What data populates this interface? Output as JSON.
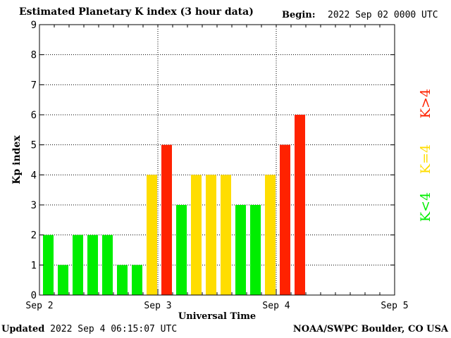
{
  "header": {
    "title": "Estimated Planetary K index (3 hour data)",
    "begin_label": "Begin:",
    "begin_value": "2022 Sep 02 0000 UTC"
  },
  "footer": {
    "updated_label": "Updated",
    "updated_value": "2022 Sep  4 06:15:07 UTC",
    "credit": "NOAA/SWPC Boulder, CO USA"
  },
  "chart_data": {
    "type": "bar",
    "title": "Estimated Planetary K index (3 hour data)",
    "xlabel": "Universal Time",
    "ylabel": "Kp index",
    "ylim": [
      0,
      9
    ],
    "yticks": [
      "0",
      "1",
      "2",
      "3",
      "4",
      "5",
      "6",
      "7",
      "8",
      "9"
    ],
    "xticks": [
      "Sep 2",
      "Sep 3",
      "Sep 4",
      "Sep 5"
    ],
    "intervals_per_day": 8,
    "total_intervals": 24,
    "values": [
      2,
      1,
      2,
      2,
      2,
      1,
      1,
      4,
      5,
      3,
      4,
      4,
      4,
      3,
      3,
      4,
      5,
      6
    ],
    "grid": true,
    "colors": {
      "low": "#00ee00",
      "mid": "#ffdd00",
      "high": "#ff2200"
    },
    "legend": [
      {
        "label": "K>4",
        "color": "#ff2200"
      },
      {
        "label": "K=4",
        "color": "#ffdd00"
      },
      {
        "label": "K<4",
        "color": "#00ee00"
      }
    ],
    "legend_position": "right"
  }
}
